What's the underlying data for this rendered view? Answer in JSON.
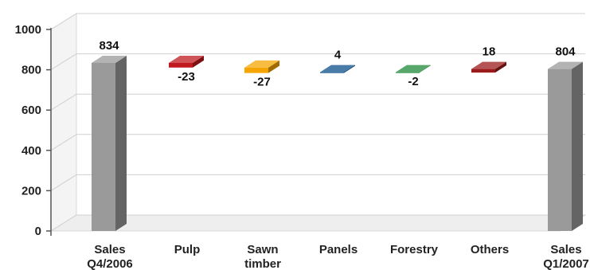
{
  "chart_data": {
    "type": "bar",
    "subtype": "waterfall",
    "categories": [
      [
        "Sales",
        "Q4/2006"
      ],
      [
        "Pulp"
      ],
      [
        "Sawn",
        "timber"
      ],
      [
        "Panels"
      ],
      [
        "Forestry"
      ],
      [
        "Others"
      ],
      [
        "Sales",
        "Q1/2007"
      ]
    ],
    "values": [
      834,
      -23,
      -27,
      4,
      -2,
      18,
      804
    ],
    "value_labels": [
      "834",
      "-23",
      "-27",
      "4",
      "-2",
      "18",
      "804"
    ],
    "kinds": [
      "total",
      "delta",
      "delta",
      "delta",
      "delta",
      "delta",
      "total"
    ],
    "colors": [
      "#9a9a9a",
      "#c0191f",
      "#f6a500",
      "#0b4f8a",
      "#1f8a3b",
      "#9b1b1b",
      "#9a9a9a"
    ],
    "ylim": [
      0,
      1000
    ],
    "yticks": [
      0,
      200,
      400,
      600,
      800,
      1000
    ],
    "grid": true,
    "legend": "none",
    "title": "",
    "xlabel": "",
    "ylabel": ""
  }
}
